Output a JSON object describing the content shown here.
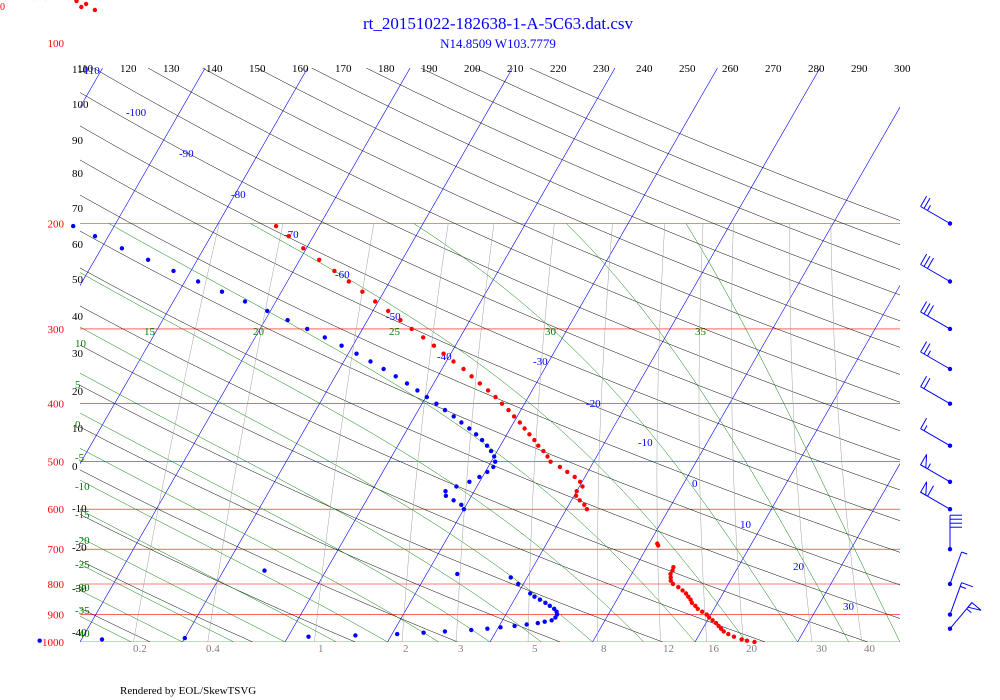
{
  "corner_label": "0",
  "footer": "Rendered by EOL/SkewTSVG",
  "colors": {
    "isobar": "#ff0000",
    "isotherm": "#0000ff",
    "dry_adiabat": "#000000",
    "moist_adiabat": "#008000",
    "mixing_ratio": "#a0a0a0",
    "temperature_trace": "#ff0000",
    "dewpoint_trace": "#0000ff",
    "wind_barbs": "#0000ff"
  },
  "chart_data": {
    "type": "scatter",
    "title": "rt_20151022-182638-1-A-5C63.dat.csv",
    "subtitle": "N14.8509 W103.7779",
    "y_axis": {
      "scale": "log",
      "range": [
        1000,
        110
      ],
      "isobar_labels": [
        "100",
        "200",
        "300",
        "400",
        "500",
        "600",
        "700",
        "800",
        "900",
        "1000"
      ]
    },
    "potential_temperature_labels": [
      "110",
      "120",
      "130",
      "140",
      "150",
      "160",
      "170",
      "180",
      "190",
      "200",
      "210",
      "220",
      "230",
      "240",
      "250",
      "260",
      "270",
      "280",
      "290",
      "300"
    ],
    "height_labels": [
      "110",
      "100",
      "90",
      "80",
      "70",
      "60",
      "50",
      "40",
      "30",
      "20",
      "10",
      "0",
      "-10",
      "-20",
      "-30",
      "-40"
    ],
    "isotherm_labels": [
      "-110",
      "-100",
      "-90",
      "-80",
      "-70",
      "-60",
      "-50",
      "-40",
      "-30",
      "-20",
      "-10",
      "0",
      "10",
      "20",
      "30"
    ],
    "moist_adiabat_labels": [
      "15",
      "20",
      "25",
      "30",
      "35"
    ],
    "moist_adiabat_left_labels": [
      "10",
      "5",
      "0",
      "-5",
      "-10",
      "-15",
      "-20",
      "-25",
      "-30",
      "-35",
      "-40"
    ],
    "mixing_ratio_labels": [
      "0.2",
      "0.4",
      "1",
      "2",
      "3",
      "5",
      "8",
      "12",
      "16",
      "20",
      "30",
      "40"
    ],
    "series": [
      {
        "name": "",
        "color": "#ff0000",
        "points": [
          {
            "p": 1000,
            "t": 25.8
          },
          {
            "p": 995,
            "t": 25.0
          },
          {
            "p": 990,
            "t": 24.4
          },
          {
            "p": 980,
            "t": 23.5
          },
          {
            "p": 970,
            "t": 22.8
          },
          {
            "p": 960,
            "t": 22.2
          },
          {
            "p": 950,
            "t": 21.8
          },
          {
            "p": 940,
            "t": 21.4
          },
          {
            "p": 930,
            "t": 21.0
          },
          {
            "p": 920,
            "t": 20.5
          },
          {
            "p": 910,
            "t": 20.0
          },
          {
            "p": 900,
            "t": 19.6
          },
          {
            "p": 890,
            "t": 19.0
          },
          {
            "p": 880,
            "t": 18.4
          },
          {
            "p": 870,
            "t": 18.0
          },
          {
            "p": 860,
            "t": 17.5
          },
          {
            "p": 850,
            "t": 17.2
          },
          {
            "p": 840,
            "t": 16.8
          },
          {
            "p": 830,
            "t": 16.4
          },
          {
            "p": 820,
            "t": 15.9
          },
          {
            "p": 810,
            "t": 15.3
          },
          {
            "p": 800,
            "t": 14.6
          },
          {
            "p": 790,
            "t": 14.2
          },
          {
            "p": 780,
            "t": 14.0
          },
          {
            "p": 770,
            "t": 13.8
          },
          {
            "p": 760,
            "t": 13.8
          },
          {
            "p": 750,
            "t": 13.7
          },
          {
            "p": 690,
            "t": 11.0
          },
          {
            "p": 685,
            "t": 10.8
          },
          {
            "p": 600,
            "t": 2.0
          },
          {
            "p": 590,
            "t": 1.5
          },
          {
            "p": 580,
            "t": 0.8
          },
          {
            "p": 570,
            "t": 0.2
          },
          {
            "p": 560,
            "t": 0.0
          },
          {
            "p": 550,
            "t": 0.3
          },
          {
            "p": 540,
            "t": -0.2
          },
          {
            "p": 530,
            "t": -1.0
          },
          {
            "p": 520,
            "t": -2.0
          },
          {
            "p": 510,
            "t": -3.0
          },
          {
            "p": 500,
            "t": -4.2
          },
          {
            "p": 490,
            "t": -4.8
          },
          {
            "p": 480,
            "t": -5.5
          },
          {
            "p": 470,
            "t": -6.3
          },
          {
            "p": 460,
            "t": -7.0
          },
          {
            "p": 450,
            "t": -7.8
          },
          {
            "p": 440,
            "t": -8.6
          },
          {
            "p": 430,
            "t": -9.4
          },
          {
            "p": 420,
            "t": -10.3
          },
          {
            "p": 410,
            "t": -11.2
          },
          {
            "p": 400,
            "t": -12.2
          },
          {
            "p": 390,
            "t": -13.2
          },
          {
            "p": 380,
            "t": -14.3
          },
          {
            "p": 370,
            "t": -15.5
          },
          {
            "p": 360,
            "t": -16.7
          },
          {
            "p": 350,
            "t": -17.9
          },
          {
            "p": 340,
            "t": -19.3
          },
          {
            "p": 330,
            "t": -20.7
          },
          {
            "p": 320,
            "t": -22.1
          },
          {
            "p": 310,
            "t": -23.6
          },
          {
            "p": 300,
            "t": -25.2
          },
          {
            "p": 290,
            "t": -26.8
          },
          {
            "p": 280,
            "t": -28.5
          },
          {
            "p": 270,
            "t": -30.3
          },
          {
            "p": 260,
            "t": -32.1
          },
          {
            "p": 250,
            "t": -34.0
          },
          {
            "p": 240,
            "t": -36.0
          },
          {
            "p": 230,
            "t": -38.1
          },
          {
            "p": 220,
            "t": -40.3
          },
          {
            "p": 210,
            "t": -42.4
          },
          {
            "p": 202,
            "t": -44.2
          },
          {
            "p": 88,
            "t": -74.0
          },
          {
            "p": 87,
            "t": -75.5
          },
          {
            "p": 86,
            "t": -75.2
          },
          {
            "p": 85,
            "t": -76.3
          },
          {
            "p": 84,
            "t": -77.2
          },
          {
            "p": 84,
            "t": -79.5
          },
          {
            "p": 84,
            "t": -80.6
          }
        ]
      },
      {
        "name": "",
        "color": "#0000ff",
        "points": [
          {
            "p": 1000,
            "t": -58.0
          },
          {
            "p": 995,
            "t": -44.0
          },
          {
            "p": 990,
            "t": -38.0
          },
          {
            "p": 985,
            "t": -30.0
          },
          {
            "p": 980,
            "t": -18.0
          },
          {
            "p": 975,
            "t": -13.5
          },
          {
            "p": 970,
            "t": -9.5
          },
          {
            "p": 965,
            "t": -7.0
          },
          {
            "p": 960,
            "t": -5.0
          },
          {
            "p": 955,
            "t": -2.5
          },
          {
            "p": 950,
            "t": -1.0
          },
          {
            "p": 945,
            "t": 0.2
          },
          {
            "p": 940,
            "t": 1.5
          },
          {
            "p": 935,
            "t": 2.6
          },
          {
            "p": 930,
            "t": 3.6
          },
          {
            "p": 925,
            "t": 4.2
          },
          {
            "p": 920,
            "t": 4.8
          },
          {
            "p": 910,
            "t": 5.0
          },
          {
            "p": 900,
            "t": 5.0
          },
          {
            "p": 890,
            "t": 4.8
          },
          {
            "p": 880,
            "t": 4.4
          },
          {
            "p": 870,
            "t": 3.8
          },
          {
            "p": 860,
            "t": 3.2
          },
          {
            "p": 850,
            "t": 2.5
          },
          {
            "p": 840,
            "t": 1.8
          },
          {
            "p": 830,
            "t": 1.2
          },
          {
            "p": 800,
            "t": -0.5
          },
          {
            "p": 780,
            "t": -1.6
          },
          {
            "p": 770,
            "t": -7.0
          },
          {
            "p": 760,
            "t": -26.0
          },
          {
            "p": 600,
            "t": -10.0
          },
          {
            "p": 590,
            "t": -10.5
          },
          {
            "p": 580,
            "t": -11.5
          },
          {
            "p": 570,
            "t": -12.5
          },
          {
            "p": 560,
            "t": -12.8
          },
          {
            "p": 550,
            "t": -12.0
          },
          {
            "p": 540,
            "t": -11.0
          },
          {
            "p": 530,
            "t": -10.3
          },
          {
            "p": 520,
            "t": -9.8
          },
          {
            "p": 510,
            "t": -9.5
          },
          {
            "p": 500,
            "t": -9.6
          },
          {
            "p": 490,
            "t": -10.0
          },
          {
            "p": 480,
            "t": -10.6
          },
          {
            "p": 470,
            "t": -11.3
          },
          {
            "p": 460,
            "t": -12.1
          },
          {
            "p": 450,
            "t": -13.0
          },
          {
            "p": 440,
            "t": -14.0
          },
          {
            "p": 430,
            "t": -15.1
          },
          {
            "p": 420,
            "t": -16.2
          },
          {
            "p": 410,
            "t": -17.4
          },
          {
            "p": 400,
            "t": -18.6
          },
          {
            "p": 390,
            "t": -19.9
          },
          {
            "p": 380,
            "t": -21.2
          },
          {
            "p": 370,
            "t": -22.6
          },
          {
            "p": 360,
            "t": -24.1
          },
          {
            "p": 350,
            "t": -25.7
          },
          {
            "p": 340,
            "t": -27.4
          },
          {
            "p": 330,
            "t": -29.2
          },
          {
            "p": 320,
            "t": -31.1
          },
          {
            "p": 310,
            "t": -33.2
          },
          {
            "p": 300,
            "t": -35.4
          },
          {
            "p": 290,
            "t": -37.8
          },
          {
            "p": 280,
            "t": -40.3
          },
          {
            "p": 270,
            "t": -43.0
          },
          {
            "p": 260,
            "t": -45.8
          },
          {
            "p": 250,
            "t": -48.7
          },
          {
            "p": 240,
            "t": -51.7
          },
          {
            "p": 230,
            "t": -54.8
          },
          {
            "p": 220,
            "t": -58.0
          },
          {
            "p": 210,
            "t": -61.3
          },
          {
            "p": 202,
            "t": -64.0
          }
        ]
      }
    ],
    "wind_barbs": [
      {
        "p": 200,
        "speed_kt": 25,
        "dir_deg": 300
      },
      {
        "p": 250,
        "speed_kt": 30,
        "dir_deg": 300
      },
      {
        "p": 300,
        "speed_kt": 30,
        "dir_deg": 300
      },
      {
        "p": 350,
        "speed_kt": 25,
        "dir_deg": 300
      },
      {
        "p": 400,
        "speed_kt": 20,
        "dir_deg": 300
      },
      {
        "p": 470,
        "speed_kt": 15,
        "dir_deg": 300
      },
      {
        "p": 540,
        "speed_kt": 55,
        "dir_deg": 300
      },
      {
        "p": 600,
        "speed_kt": 60,
        "dir_deg": 300
      },
      {
        "p": 700,
        "speed_kt": 40,
        "dir_deg": 0
      },
      {
        "p": 800,
        "speed_kt": 5,
        "dir_deg": 20
      },
      {
        "p": 900,
        "speed_kt": 15,
        "dir_deg": 20
      },
      {
        "p": 950,
        "speed_kt": 55,
        "dir_deg": 40
      }
    ]
  }
}
